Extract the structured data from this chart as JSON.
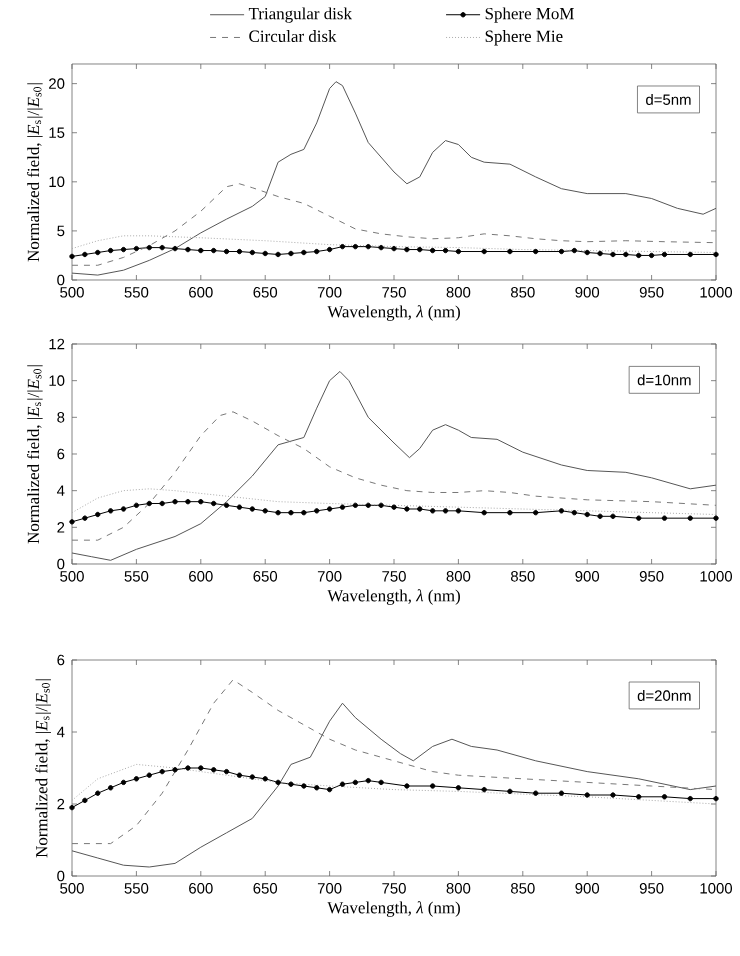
{
  "chart_data": [
    {
      "type": "line",
      "xlabel": "Wavelength, *λ* (nm)",
      "ylabel": "Normalized field, |*E*$_{s}$|/|*E*$_{s0}$|",
      "annotations": [
        "d=5nm"
      ],
      "xlim": [
        500,
        1000
      ],
      "ylim": [
        0,
        22
      ],
      "xticks": [
        500,
        550,
        600,
        650,
        700,
        750,
        800,
        850,
        900,
        950,
        1000
      ],
      "yticks": [
        0,
        5,
        10,
        15,
        20
      ],
      "legend": "top",
      "series": [
        {
          "name": "Triangular disk",
          "color": "#555555",
          "line_style": "solid",
          "marker": "none",
          "x": [
            500,
            520,
            540,
            560,
            580,
            600,
            620,
            640,
            650,
            660,
            670,
            680,
            690,
            700,
            705,
            710,
            720,
            730,
            750,
            760,
            770,
            780,
            790,
            800,
            810,
            820,
            840,
            860,
            880,
            900,
            930,
            950,
            970,
            990,
            1000
          ],
          "values": [
            0.7,
            0.5,
            1.0,
            2.0,
            3.2,
            4.8,
            6.2,
            7.5,
            8.5,
            12.0,
            12.8,
            13.3,
            16,
            19.5,
            20.2,
            19.8,
            17,
            14,
            11,
            9.8,
            10.5,
            13,
            14.2,
            13.8,
            12.5,
            12.0,
            11.8,
            10.5,
            9.3,
            8.8,
            8.8,
            8.3,
            7.3,
            6.7,
            7.3
          ]
        },
        {
          "name": "Sphere MoM",
          "color": "#000000",
          "line_style": "solid",
          "marker": "circle",
          "x": [
            500,
            510,
            520,
            530,
            540,
            550,
            560,
            570,
            580,
            590,
            600,
            610,
            620,
            630,
            640,
            650,
            660,
            670,
            680,
            690,
            700,
            710,
            720,
            730,
            740,
            750,
            760,
            770,
            780,
            790,
            800,
            820,
            840,
            860,
            880,
            890,
            900,
            910,
            920,
            930,
            940,
            950,
            960,
            980,
            1000
          ],
          "values": [
            2.4,
            2.6,
            2.8,
            3.0,
            3.1,
            3.2,
            3.3,
            3.3,
            3.2,
            3.1,
            3.0,
            3.0,
            2.9,
            2.9,
            2.8,
            2.7,
            2.6,
            2.7,
            2.8,
            2.9,
            3.1,
            3.4,
            3.4,
            3.4,
            3.3,
            3.2,
            3.1,
            3.1,
            3.0,
            3.0,
            2.9,
            2.9,
            2.9,
            2.9,
            2.9,
            3.0,
            2.8,
            2.7,
            2.6,
            2.6,
            2.5,
            2.5,
            2.6,
            2.6,
            2.6
          ]
        },
        {
          "name": "Circular disk",
          "color": "#777777",
          "line_style": "dashed",
          "marker": "none",
          "x": [
            500,
            520,
            540,
            560,
            580,
            600,
            620,
            630,
            640,
            660,
            680,
            700,
            720,
            740,
            760,
            780,
            800,
            820,
            840,
            860,
            880,
            900,
            930,
            960,
            1000
          ],
          "values": [
            1.5,
            1.5,
            2.3,
            3.5,
            5,
            7,
            9.5,
            9.8,
            9.4,
            8.5,
            7.8,
            6.5,
            5.2,
            4.7,
            4.4,
            4.2,
            4.3,
            4.7,
            4.5,
            4.2,
            4.0,
            3.9,
            4.0,
            3.9,
            3.8
          ]
        },
        {
          "name": "Sphere Mie",
          "color": "#aaaaaa",
          "line_style": "dotted",
          "marker": "none",
          "x": [
            500,
            520,
            540,
            560,
            600,
            650,
            700,
            750,
            800,
            850,
            900,
            950,
            1000
          ],
          "values": [
            3.2,
            4.0,
            4.5,
            4.5,
            4.3,
            4.0,
            3.6,
            3.4,
            3.3,
            3.1,
            3.0,
            2.9,
            2.8
          ]
        }
      ]
    },
    {
      "type": "line",
      "xlabel": "Wavelength, *λ* (nm)",
      "ylabel": "Normalized field, |*E*$_{s}$|/|*E*$_{s0}$|",
      "annotations": [
        "d=10nm"
      ],
      "xlim": [
        500,
        1000
      ],
      "ylim": [
        0,
        12
      ],
      "xticks": [
        500,
        550,
        600,
        650,
        700,
        750,
        800,
        850,
        900,
        950,
        1000
      ],
      "yticks": [
        0,
        2,
        4,
        6,
        8,
        10,
        12
      ],
      "series": [
        {
          "color": "#555555",
          "line_style": "solid",
          "marker": "none",
          "x": [
            500,
            515,
            530,
            550,
            580,
            600,
            620,
            640,
            660,
            680,
            690,
            700,
            708,
            715,
            730,
            750,
            762,
            770,
            780,
            790,
            800,
            810,
            830,
            850,
            880,
            900,
            930,
            950,
            980,
            1000
          ],
          "values": [
            0.6,
            0.4,
            0.2,
            0.8,
            1.5,
            2.2,
            3.4,
            4.8,
            6.5,
            6.9,
            8.5,
            10.0,
            10.5,
            10.0,
            8.0,
            6.6,
            5.8,
            6.3,
            7.3,
            7.6,
            7.3,
            6.9,
            6.8,
            6.1,
            5.4,
            5.1,
            5.0,
            4.7,
            4.1,
            4.3
          ]
        },
        {
          "color": "#000000",
          "line_style": "solid",
          "marker": "circle",
          "x": [
            500,
            510,
            520,
            530,
            540,
            550,
            560,
            570,
            580,
            590,
            600,
            610,
            620,
            630,
            640,
            650,
            660,
            670,
            680,
            690,
            700,
            710,
            720,
            730,
            740,
            750,
            760,
            770,
            780,
            790,
            800,
            820,
            840,
            860,
            880,
            890,
            900,
            910,
            920,
            940,
            960,
            980,
            1000
          ],
          "values": [
            2.3,
            2.5,
            2.7,
            2.9,
            3.0,
            3.2,
            3.3,
            3.3,
            3.4,
            3.4,
            3.4,
            3.3,
            3.2,
            3.1,
            3.0,
            2.9,
            2.8,
            2.8,
            2.8,
            2.9,
            3.0,
            3.1,
            3.2,
            3.2,
            3.2,
            3.1,
            3.0,
            3.0,
            2.9,
            2.9,
            2.9,
            2.8,
            2.8,
            2.8,
            2.9,
            2.8,
            2.7,
            2.6,
            2.6,
            2.5,
            2.5,
            2.5,
            2.5
          ]
        },
        {
          "color": "#777777",
          "line_style": "dashed",
          "marker": "none",
          "x": [
            500,
            520,
            540,
            560,
            580,
            600,
            615,
            625,
            640,
            660,
            680,
            700,
            720,
            740,
            760,
            780,
            800,
            820,
            840,
            860,
            900,
            950,
            1000
          ],
          "values": [
            1.3,
            1.3,
            2.0,
            3.3,
            5.0,
            7.0,
            8.1,
            8.3,
            7.8,
            7.0,
            6.3,
            5.3,
            4.7,
            4.3,
            4.0,
            3.9,
            3.9,
            4.0,
            3.9,
            3.7,
            3.5,
            3.4,
            3.2
          ]
        },
        {
          "color": "#aaaaaa",
          "line_style": "dotted",
          "marker": "none",
          "x": [
            500,
            520,
            540,
            560,
            580,
            620,
            660,
            700,
            750,
            800,
            850,
            900,
            950,
            1000
          ],
          "values": [
            2.8,
            3.6,
            4.0,
            4.1,
            4.0,
            3.7,
            3.4,
            3.3,
            3.2,
            3.1,
            3.0,
            2.9,
            2.8,
            2.7
          ]
        }
      ]
    },
    {
      "type": "line",
      "xlabel": "Wavelength, *λ* (nm)",
      "ylabel": "Normalized field, |*E*$_{s}$|/|*E*$_{s0}$|",
      "annotations": [
        "d=20nm"
      ],
      "xlim": [
        500,
        1000
      ],
      "ylim": [
        0,
        6
      ],
      "xticks": [
        500,
        550,
        600,
        650,
        700,
        750,
        800,
        850,
        900,
        950,
        1000
      ],
      "yticks": [
        0,
        2,
        4,
        6
      ],
      "series": [
        {
          "color": "#555555",
          "line_style": "solid",
          "marker": "none",
          "x": [
            500,
            520,
            540,
            560,
            580,
            600,
            620,
            640,
            660,
            670,
            685,
            700,
            710,
            720,
            740,
            755,
            765,
            780,
            795,
            810,
            830,
            860,
            900,
            940,
            980,
            1000
          ],
          "values": [
            0.7,
            0.5,
            0.3,
            0.25,
            0.35,
            0.8,
            1.2,
            1.6,
            2.5,
            3.1,
            3.3,
            4.3,
            4.8,
            4.4,
            3.8,
            3.4,
            3.2,
            3.6,
            3.8,
            3.6,
            3.5,
            3.2,
            2.9,
            2.7,
            2.4,
            2.5
          ]
        },
        {
          "color": "#000000",
          "line_style": "solid",
          "marker": "circle",
          "x": [
            500,
            510,
            520,
            530,
            540,
            550,
            560,
            570,
            580,
            590,
            600,
            610,
            620,
            630,
            640,
            650,
            660,
            670,
            680,
            690,
            700,
            710,
            720,
            730,
            740,
            760,
            780,
            800,
            820,
            840,
            860,
            880,
            900,
            920,
            940,
            960,
            980,
            1000
          ],
          "values": [
            1.9,
            2.1,
            2.3,
            2.45,
            2.6,
            2.7,
            2.8,
            2.9,
            2.95,
            3.0,
            3.0,
            2.95,
            2.9,
            2.8,
            2.75,
            2.7,
            2.6,
            2.55,
            2.5,
            2.45,
            2.4,
            2.55,
            2.6,
            2.65,
            2.6,
            2.5,
            2.5,
            2.45,
            2.4,
            2.35,
            2.3,
            2.3,
            2.25,
            2.25,
            2.2,
            2.2,
            2.15,
            2.15
          ]
        },
        {
          "color": "#777777",
          "line_style": "dashed",
          "marker": "none",
          "x": [
            500,
            530,
            550,
            570,
            590,
            610,
            625,
            640,
            660,
            680,
            700,
            720,
            750,
            780,
            800,
            850,
            900,
            950,
            1000
          ],
          "values": [
            0.9,
            0.9,
            1.4,
            2.3,
            3.5,
            4.8,
            5.45,
            5.1,
            4.6,
            4.2,
            3.8,
            3.5,
            3.2,
            2.9,
            2.8,
            2.7,
            2.6,
            2.5,
            2.4
          ]
        },
        {
          "color": "#aaaaaa",
          "line_style": "dotted",
          "marker": "none",
          "x": [
            500,
            520,
            550,
            580,
            620,
            660,
            700,
            750,
            800,
            900,
            1000
          ],
          "values": [
            2.1,
            2.7,
            3.1,
            3.0,
            2.8,
            2.6,
            2.5,
            2.4,
            2.35,
            2.2,
            2.0
          ]
        }
      ]
    }
  ]
}
